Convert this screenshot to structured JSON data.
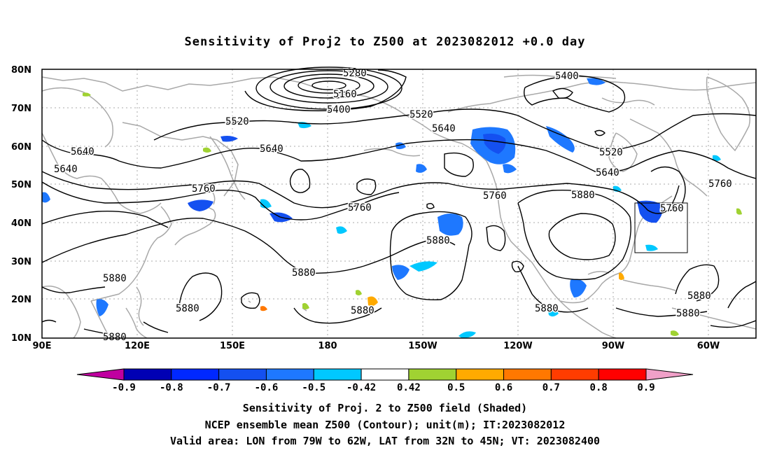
{
  "title": "Sensitivity of Proj2 to Z500 at 2023082012 +0.0 day",
  "lat_labels": [
    "80N",
    "70N",
    "60N",
    "50N",
    "40N",
    "30N",
    "20N",
    "10N"
  ],
  "lon_labels": [
    "90E",
    "120E",
    "150E",
    "180",
    "150W",
    "120W",
    "90W",
    "60W"
  ],
  "contour_labels": [
    "5280",
    "5160",
    "5400",
    "5400",
    "5520",
    "5520",
    "5640",
    "5640",
    "5640",
    "5640",
    "5520",
    "5640",
    "5760",
    "5760",
    "5760",
    "5760",
    "5880",
    "5760",
    "5880",
    "5880",
    "5880",
    "5880",
    "5880",
    "5880",
    "5880",
    "5880",
    "5880",
    "5880"
  ],
  "colorbar": {
    "labels": [
      "-0.9",
      "-0.8",
      "-0.7",
      "-0.6",
      "-0.5",
      "-0.42",
      "0.42",
      "0.5",
      "0.6",
      "0.7",
      "0.8",
      "0.9"
    ],
    "colors": [
      "#c000a0",
      "#0000b4",
      "#0028ff",
      "#1450f0",
      "#1e78ff",
      "#00c8ff",
      "#ffffff",
      "#a0d232",
      "#ffaa00",
      "#ff7800",
      "#ff3c00",
      "#ff0000",
      "#f0a0c8"
    ]
  },
  "captions": {
    "line1": "Sensitivity of Proj. 2 to Z500 field (Shaded)",
    "line2": "NCEP ensemble mean Z500 (Contour); unit(m); IT:2023082012",
    "line3": "Valid area: LON from 79W to 62W, LAT from 32N to 45N; VT: 2023082400"
  }
}
